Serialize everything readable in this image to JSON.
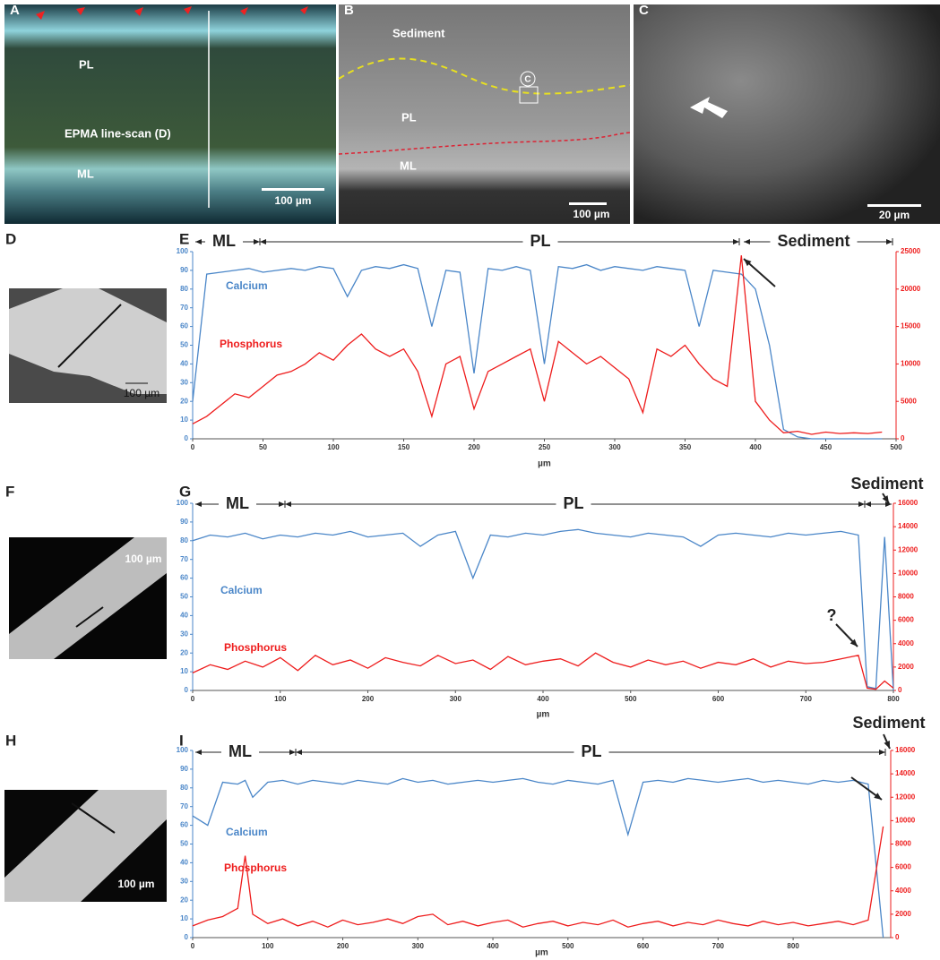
{
  "panels": [
    {
      "label": "A",
      "texts": [
        "PL",
        "EPMA line-scan (D)",
        "ML"
      ],
      "scale_bar": "100 µm"
    },
    {
      "label": "B",
      "texts": [
        "Sediment",
        "PL",
        "ML",
        "C"
      ],
      "scale_bar": "100 µm"
    },
    {
      "label": "C",
      "scale_bar": "20 µm"
    },
    {
      "label": "D",
      "scale_bar": "100 µm"
    },
    {
      "label": "F",
      "scale_bar": "100 µm"
    },
    {
      "label": "H",
      "scale_bar": "100 µm"
    }
  ],
  "chart_data": [
    {
      "type": "line",
      "panel_label": "E",
      "x_label": "µm",
      "annotations": [
        "ML",
        "PL",
        "Sediment"
      ],
      "x": [
        0,
        10,
        20,
        30,
        40,
        50,
        60,
        70,
        80,
        90,
        100,
        110,
        120,
        130,
        140,
        150,
        160,
        170,
        180,
        190,
        200,
        210,
        220,
        230,
        240,
        250,
        260,
        270,
        280,
        290,
        300,
        310,
        320,
        330,
        340,
        350,
        360,
        370,
        380,
        390,
        400,
        410,
        420,
        430,
        440,
        450,
        460,
        470,
        480,
        490
      ],
      "series": [
        {
          "name": "Calcium",
          "color": "#4a86c8",
          "values": [
            20,
            88,
            89,
            90,
            91,
            89,
            90,
            91,
            90,
            92,
            91,
            76,
            90,
            92,
            91,
            93,
            91,
            60,
            90,
            89,
            35,
            91,
            90,
            92,
            90,
            40,
            92,
            91,
            93,
            90,
            92,
            91,
            90,
            92,
            91,
            90,
            60,
            90,
            89,
            88,
            80,
            50,
            5,
            1,
            0,
            0,
            0,
            0,
            0,
            0
          ]
        },
        {
          "name": "Phosphorus",
          "color": "#ee1c1c",
          "axis": "y2",
          "values": [
            2000,
            3000,
            4500,
            6000,
            5500,
            7000,
            8500,
            9000,
            10000,
            11500,
            10500,
            12500,
            14000,
            12000,
            11000,
            12000,
            9000,
            3000,
            10000,
            11000,
            4000,
            9000,
            10000,
            11000,
            12000,
            5000,
            13000,
            11500,
            10000,
            11000,
            9500,
            8000,
            3500,
            12000,
            11000,
            12500,
            10000,
            8000,
            7000,
            24500,
            5000,
            2500,
            800,
            1000,
            600,
            900,
            700,
            800,
            700,
            900
          ]
        }
      ],
      "xlim": [
        0,
        500
      ],
      "xticks": [
        0,
        50,
        100,
        150,
        200,
        250,
        300,
        350,
        400,
        450,
        500
      ],
      "ylim": [
        0,
        100
      ],
      "yticks": [
        0,
        10,
        20,
        30,
        40,
        50,
        60,
        70,
        80,
        90,
        100
      ],
      "y2lim": [
        0,
        25000
      ],
      "y2ticks": [
        0,
        5000,
        10000,
        15000,
        20000,
        25000
      ]
    },
    {
      "type": "line",
      "panel_label": "G",
      "x_label": "µm",
      "annotations": [
        "ML",
        "PL",
        "Sediment",
        "?"
      ],
      "x": [
        0,
        20,
        40,
        60,
        80,
        100,
        120,
        140,
        160,
        180,
        200,
        220,
        240,
        260,
        280,
        300,
        320,
        340,
        360,
        380,
        400,
        420,
        440,
        460,
        480,
        500,
        520,
        540,
        560,
        580,
        600,
        620,
        640,
        660,
        680,
        700,
        720,
        740,
        760,
        770,
        780,
        790,
        800
      ],
      "series": [
        {
          "name": "Calcium",
          "color": "#4a86c8",
          "values": [
            80,
            83,
            82,
            84,
            81,
            83,
            82,
            84,
            83,
            85,
            82,
            83,
            84,
            77,
            83,
            85,
            60,
            83,
            82,
            84,
            83,
            85,
            86,
            84,
            83,
            82,
            84,
            83,
            82,
            77,
            83,
            84,
            83,
            82,
            84,
            83,
            84,
            85,
            83,
            2,
            1,
            82,
            0
          ]
        },
        {
          "name": "Phosphorus",
          "color": "#ee1c1c",
          "axis": "y2",
          "values": [
            1500,
            2200,
            1800,
            2500,
            2000,
            2800,
            1700,
            3000,
            2200,
            2600,
            1900,
            2800,
            2400,
            2100,
            3000,
            2300,
            2600,
            1800,
            2900,
            2200,
            2500,
            2700,
            2100,
            3200,
            2400,
            2000,
            2600,
            2200,
            2500,
            1900,
            2400,
            2200,
            2700,
            2000,
            2500,
            2300,
            2400,
            2700,
            3000,
            200,
            100,
            800,
            200
          ]
        }
      ],
      "xlim": [
        0,
        800
      ],
      "xticks": [
        0,
        100,
        200,
        300,
        400,
        500,
        600,
        700,
        800
      ],
      "ylim": [
        0,
        100
      ],
      "yticks": [
        0,
        10,
        20,
        30,
        40,
        50,
        60,
        70,
        80,
        90,
        100
      ],
      "y2lim": [
        0,
        16000
      ],
      "y2ticks": [
        0,
        2000,
        4000,
        6000,
        8000,
        10000,
        12000,
        14000,
        16000
      ]
    },
    {
      "type": "line",
      "panel_label": "I",
      "x_label": "µm",
      "annotations": [
        "ML",
        "PL",
        "Sediment"
      ],
      "x": [
        0,
        20,
        40,
        60,
        70,
        80,
        100,
        120,
        140,
        160,
        180,
        200,
        220,
        240,
        260,
        280,
        300,
        320,
        340,
        360,
        380,
        400,
        420,
        440,
        460,
        480,
        500,
        520,
        540,
        560,
        580,
        600,
        620,
        640,
        660,
        680,
        700,
        720,
        740,
        760,
        780,
        800,
        820,
        840,
        860,
        880,
        900,
        920
      ],
      "series": [
        {
          "name": "Calcium",
          "color": "#4a86c8",
          "values": [
            65,
            60,
            83,
            82,
            84,
            75,
            83,
            84,
            82,
            84,
            83,
            82,
            84,
            83,
            82,
            85,
            83,
            84,
            82,
            83,
            84,
            83,
            84,
            85,
            83,
            82,
            84,
            83,
            82,
            84,
            55,
            83,
            84,
            83,
            85,
            84,
            83,
            84,
            85,
            83,
            84,
            83,
            82,
            84,
            83,
            84,
            82,
            0
          ]
        },
        {
          "name": "Phosphorus",
          "color": "#ee1c1c",
          "axis": "y2",
          "values": [
            1000,
            1500,
            1800,
            2500,
            7000,
            2000,
            1200,
            1600,
            1000,
            1400,
            900,
            1500,
            1100,
            1300,
            1600,
            1200,
            1800,
            2000,
            1100,
            1400,
            1000,
            1300,
            1500,
            900,
            1200,
            1400,
            1000,
            1300,
            1100,
            1500,
            900,
            1200,
            1400,
            1000,
            1300,
            1100,
            1500,
            1200,
            1000,
            1400,
            1100,
            1300,
            1000,
            1200,
            1400,
            1100,
            1500,
            9500
          ]
        }
      ],
      "xlim": [
        0,
        930
      ],
      "xticks": [
        0,
        100,
        200,
        300,
        400,
        500,
        600,
        700,
        800
      ],
      "ylim": [
        0,
        100
      ],
      "yticks": [
        0,
        10,
        20,
        30,
        40,
        50,
        60,
        70,
        80,
        90,
        100
      ],
      "y2lim": [
        0,
        16000
      ],
      "y2ticks": [
        0,
        2000,
        4000,
        6000,
        8000,
        10000,
        12000,
        14000,
        16000
      ]
    }
  ]
}
